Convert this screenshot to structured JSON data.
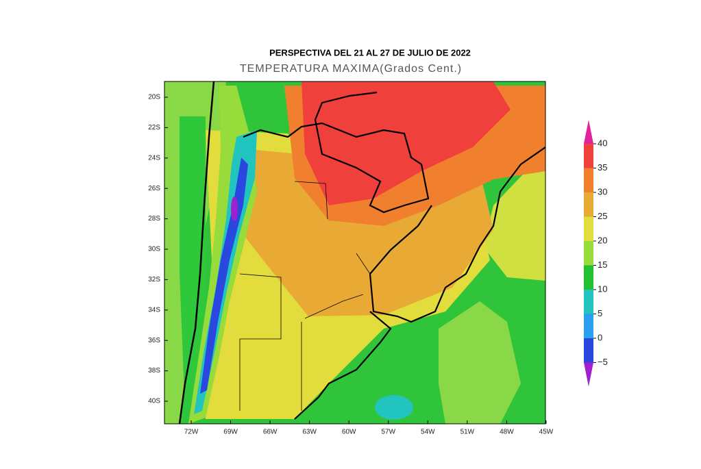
{
  "map": {
    "title": "PERSPECTIVA DEL 21 AL 27 DE JULIO DE 2022",
    "subtitle": "TEMPERATURA MAXIMA(Grados Cent.)",
    "lat_labels": [
      "20S",
      "22S",
      "24S",
      "26S",
      "28S",
      "30S",
      "32S",
      "34S",
      "36S",
      "38S",
      "40S"
    ],
    "lon_labels": [
      "72W",
      "69W",
      "66W",
      "63W",
      "60W",
      "57W",
      "54W",
      "51W",
      "48W",
      "45W"
    ],
    "legend": {
      "levels": [
        "40",
        "35",
        "30",
        "25",
        "20",
        "15",
        "10",
        "5",
        "0",
        "−5"
      ],
      "colors": [
        "#e0229c",
        "#f0403c",
        "#f0802e",
        "#e8aa34",
        "#e2dc3c",
        "#98dc3c",
        "#22c032",
        "#22c4c0",
        "#2aa0ee",
        "#2a48e0",
        "#a020d0"
      ]
    }
  }
}
